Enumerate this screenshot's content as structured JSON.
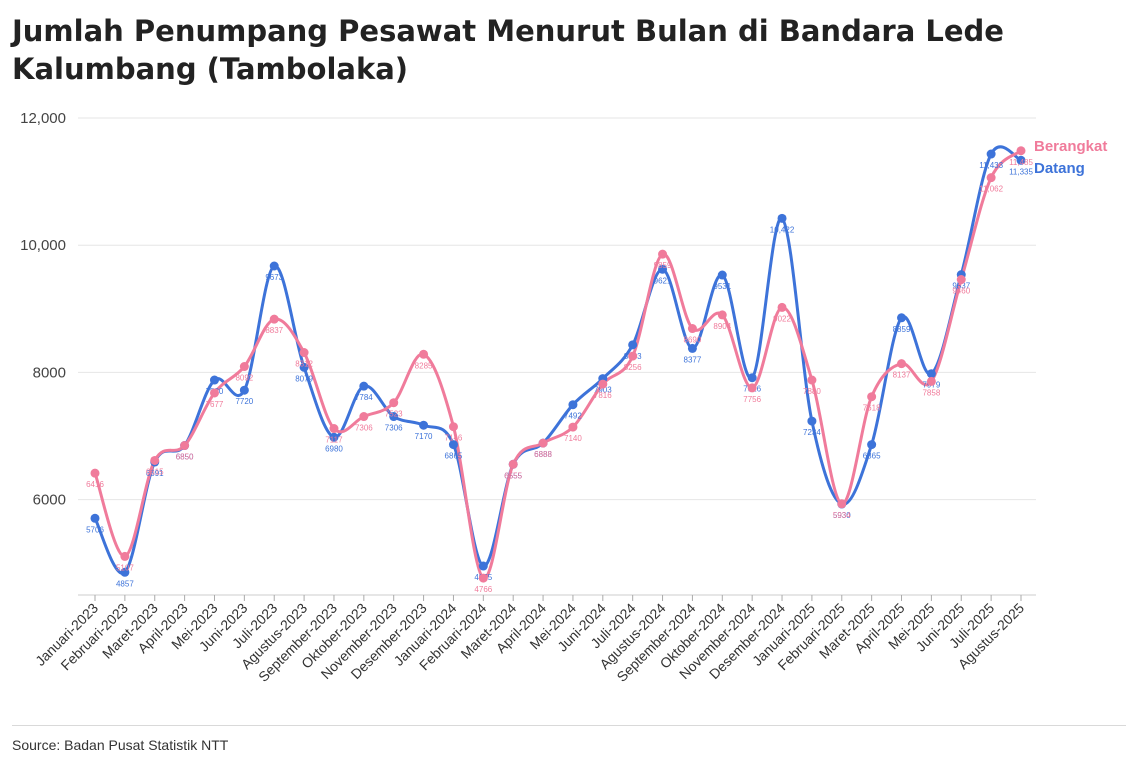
{
  "title": "Jumlah Penumpang Pesawat Menurut Bulan di Bandara Lede Kalumbang (Tambolaka)",
  "source": "Source: Badan Pusat Statistik NTT",
  "chart_data": {
    "type": "line",
    "title": "Jumlah Penumpang Pesawat Menurut Bulan di Bandara Lede Kalumbang (Tambolaka)",
    "xlabel": "",
    "ylabel": "",
    "ylim": [
      4500,
      12000
    ],
    "yticks": [
      {
        "value": 6000,
        "label": "6000"
      },
      {
        "value": 8000,
        "label": "8000"
      },
      {
        "value": 10000,
        "label": "10,000"
      },
      {
        "value": 12000,
        "label": "12,000"
      }
    ],
    "grid": true,
    "legend_position": "end-of-lines",
    "categories": [
      "Januari-2023",
      "Februari-2023",
      "Maret-2023",
      "April-2023",
      "Mei-2023",
      "Juni-2023",
      "Juli-2023",
      "Agustus-2023",
      "September-2023",
      "Oktober-2023",
      "November-2023",
      "Desember-2023",
      "Januari-2024",
      "Februari-2024",
      "Maret-2024",
      "April-2024",
      "Mei-2024",
      "Juni-2024",
      "Juli-2024",
      "Agustus-2024",
      "September-2024",
      "Oktober-2024",
      "November-2024",
      "Desember-2024",
      "Januari-2025",
      "Februari-2025",
      "Maret-2025",
      "April-2025",
      "Mei-2025",
      "Juni-2025",
      "Juli-2025",
      "Agustus-2025"
    ],
    "series": [
      {
        "name": "Datang",
        "color": "#3d73d9",
        "values": [
          5706,
          4857,
          6591,
          6850,
          7880,
          7720,
          9673,
          8079,
          6980,
          7784,
          7306,
          7170,
          6865,
          4955,
          6555,
          6888,
          7492,
          7903,
          8433,
          9621,
          8377,
          9531,
          7916,
          10422,
          7234,
          5930,
          6865,
          8859,
          7979,
          9537,
          11433,
          11335
        ],
        "labels": [
          "5706",
          "4857",
          "6591",
          "6850",
          "7880",
          "7720",
          "9673",
          "8079",
          "6980",
          "7784",
          "7306",
          "7170",
          "6865",
          "4955",
          "6555",
          "6888",
          "7492",
          "7903",
          "8433",
          "9621",
          "8377",
          "9531",
          "7916",
          "10,422",
          "7234",
          "5930",
          "6865",
          "8859",
          "7979",
          "9537",
          "11,433",
          "11,335"
        ]
      },
      {
        "name": "Berangkat",
        "color": "#f07b9b",
        "values": [
          6416,
          5107,
          6615,
          6850,
          7677,
          8092,
          8837,
          8312,
          7117,
          7306,
          7523,
          8285,
          7146,
          4766,
          6555,
          6888,
          7140,
          7816,
          8256,
          9859,
          8690,
          8904,
          7756,
          9022,
          7880,
          5934,
          7618,
          8137,
          7858,
          9460,
          11062,
          11485
        ],
        "labels": [
          "6416",
          "5107",
          "6615",
          "6850",
          "7677",
          "8092",
          "8837",
          "8312",
          "7117",
          "7306",
          "7523",
          "8285",
          "7146",
          "4766",
          "6555",
          "6888",
          "7140",
          "7816",
          "8256",
          "9859",
          "8690",
          "8904",
          "7756",
          "9022",
          "7880",
          "5934",
          "7618",
          "8137",
          "7858",
          "9460",
          "11,062",
          "11,485"
        ]
      }
    ]
  }
}
